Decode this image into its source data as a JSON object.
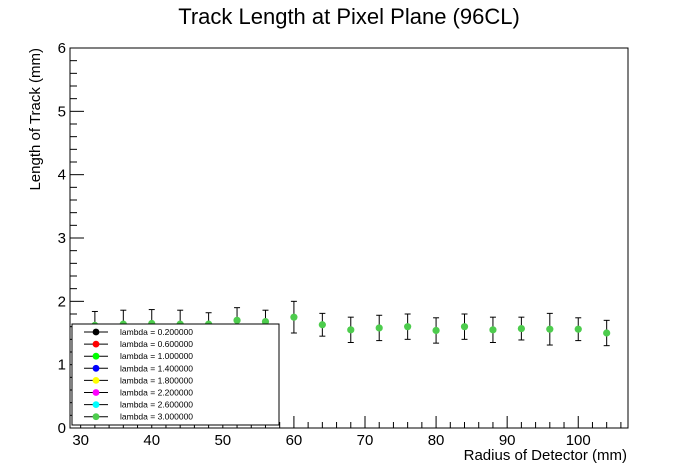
{
  "chart_data": {
    "type": "scatter",
    "title": "Track Length at Pixel Plane (96CL)",
    "xlabel": "Radius of Detector (mm)",
    "ylabel": "Length of Track (mm)",
    "xlim": [
      28.5,
      107.0
    ],
    "ylim": [
      0,
      6
    ],
    "x_ticks": [
      "30",
      "40",
      "50",
      "60",
      "70",
      "80",
      "90",
      "100"
    ],
    "y_ticks": [
      "0",
      "1",
      "2",
      "3",
      "4",
      "5",
      "6"
    ],
    "grid": false,
    "legend_position": "bottom-left",
    "series": [
      {
        "name": "lambda = 0.200000",
        "color": "#000000",
        "visible": false
      },
      {
        "name": "lambda = 0.600000",
        "color": "#ff0000",
        "visible": false
      },
      {
        "name": "lambda = 1.000000",
        "color": "#00ff00",
        "visible": false
      },
      {
        "name": "lambda = 1.400000",
        "color": "#0000ff",
        "visible": false
      },
      {
        "name": "lambda = 1.800000",
        "color": "#ffff00",
        "visible": false
      },
      {
        "name": "lambda = 2.200000",
        "color": "#ff00ff",
        "visible": false
      },
      {
        "name": "lambda = 2.600000",
        "color": "#00ffff",
        "visible": false
      },
      {
        "name": "lambda = 3.000000",
        "color": "#4dcc4d",
        "visible": true,
        "x": [
          32,
          36,
          40,
          44,
          48,
          52,
          56,
          60,
          64,
          68,
          72,
          76,
          80,
          84,
          88,
          92,
          96,
          100,
          104
        ],
        "y": [
          1.62,
          1.64,
          1.65,
          1.64,
          1.64,
          1.7,
          1.68,
          1.75,
          1.63,
          1.55,
          1.58,
          1.6,
          1.54,
          1.6,
          1.55,
          1.57,
          1.56,
          1.56,
          1.5
        ],
        "err": [
          0.22,
          0.22,
          0.22,
          0.22,
          0.18,
          0.2,
          0.18,
          0.25,
          0.18,
          0.2,
          0.2,
          0.2,
          0.2,
          0.2,
          0.2,
          0.18,
          0.25,
          0.18,
          0.2
        ]
      }
    ]
  }
}
